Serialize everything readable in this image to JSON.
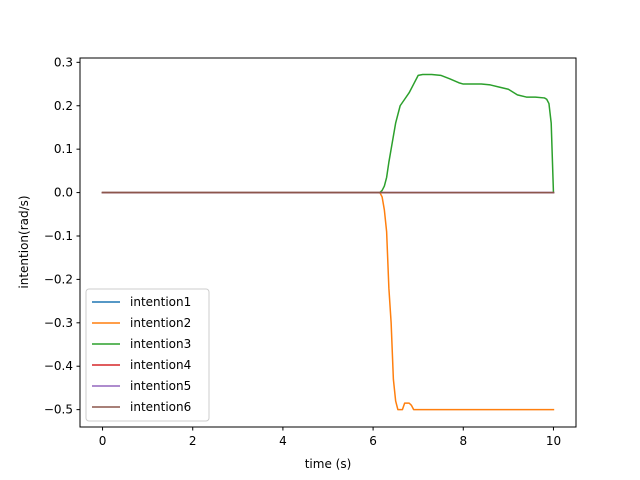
{
  "chart_data": {
    "type": "line",
    "title": "",
    "xlabel": "time (s)",
    "ylabel": "intention(rad/s)",
    "xlim": [
      -0.5,
      10.5
    ],
    "ylim": [
      -0.54,
      0.31
    ],
    "xticks": [
      0,
      2,
      4,
      6,
      8,
      10
    ],
    "xtick_labels": [
      "0",
      "2",
      "4",
      "6",
      "8",
      "10"
    ],
    "yticks": [
      -0.5,
      -0.4,
      -0.3,
      -0.2,
      -0.1,
      0.0,
      0.1,
      0.2,
      0.3
    ],
    "ytick_labels": [
      "−0.5",
      "−0.4",
      "−0.3",
      "−0.2",
      "−0.1",
      "0.0",
      "0.1",
      "0.2",
      "0.3"
    ],
    "grid": false,
    "legend_position": "lower-left",
    "series": [
      {
        "name": "intention1",
        "color": "#1f77b4",
        "x": [
          0,
          10
        ],
        "y": [
          0,
          0
        ]
      },
      {
        "name": "intention2",
        "color": "#ff7f0e",
        "x": [
          0,
          6.15,
          6.2,
          6.25,
          6.3,
          6.35,
          6.4,
          6.45,
          6.5,
          6.55,
          6.6,
          6.65,
          6.7,
          6.8,
          6.85,
          6.9,
          6.95,
          7.0,
          8.0,
          9.0,
          10.0
        ],
        "y": [
          0,
          0,
          -0.01,
          -0.04,
          -0.09,
          -0.22,
          -0.3,
          -0.43,
          -0.48,
          -0.5,
          -0.5,
          -0.5,
          -0.485,
          -0.485,
          -0.49,
          -0.5,
          -0.5,
          -0.5,
          -0.5,
          -0.5,
          -0.5
        ],
        "marker": "none"
      },
      {
        "name": "intention3",
        "color": "#2ca02c",
        "x": [
          0,
          6.15,
          6.2,
          6.25,
          6.3,
          6.35,
          6.4,
          6.45,
          6.5,
          6.55,
          6.6,
          6.7,
          6.8,
          6.9,
          7.0,
          7.1,
          7.3,
          7.5,
          7.7,
          7.9,
          8.0,
          8.2,
          8.4,
          8.6,
          8.8,
          9.0,
          9.2,
          9.4,
          9.6,
          9.8,
          9.85,
          9.9,
          9.95,
          10.0
        ],
        "y": [
          0,
          0,
          0.005,
          0.015,
          0.035,
          0.07,
          0.1,
          0.13,
          0.16,
          0.18,
          0.2,
          0.215,
          0.23,
          0.25,
          0.27,
          0.272,
          0.272,
          0.27,
          0.262,
          0.253,
          0.25,
          0.25,
          0.25,
          0.248,
          0.243,
          0.238,
          0.225,
          0.22,
          0.22,
          0.218,
          0.215,
          0.205,
          0.16,
          0.0
        ]
      },
      {
        "name": "intention4",
        "color": "#d62728",
        "x": [
          0,
          10
        ],
        "y": [
          0,
          0
        ]
      },
      {
        "name": "intention5",
        "color": "#9467bd",
        "x": [
          0,
          10
        ],
        "y": [
          0,
          0
        ]
      },
      {
        "name": "intention6",
        "color": "#8c564b",
        "x": [
          0,
          10
        ],
        "y": [
          0,
          0
        ]
      }
    ]
  }
}
